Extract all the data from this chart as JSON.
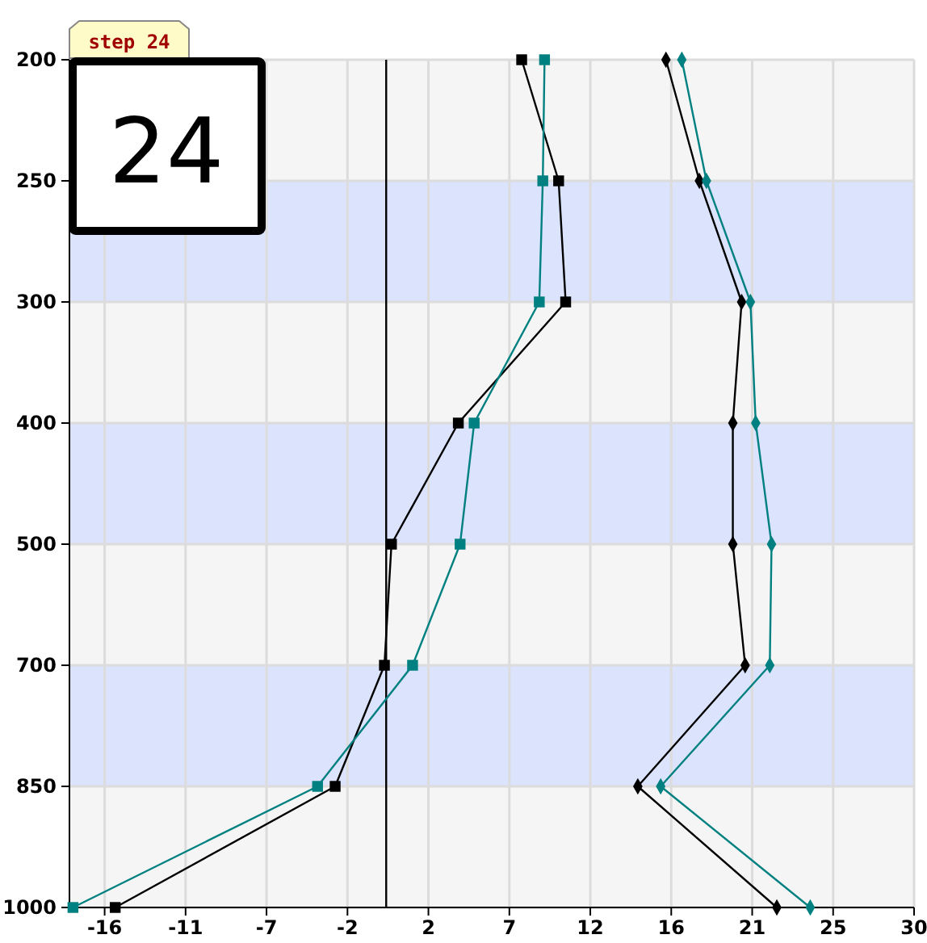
{
  "chart_data": {
    "type": "line",
    "title": "step 24",
    "annotations": [
      "24"
    ],
    "orientation": "horizontal",
    "categories": [
      "200",
      "250",
      "300",
      "400",
      "500",
      "700",
      "850",
      "1000"
    ],
    "xlim": [
      -18,
      30
    ],
    "xticks": [
      {
        "value": -16,
        "label": "-16"
      },
      {
        "value": -11.4,
        "label": "-11"
      },
      {
        "value": -6.8,
        "label": "-7"
      },
      {
        "value": -2.2,
        "label": "-2"
      },
      {
        "value": 2.4,
        "label": "2"
      },
      {
        "value": 7,
        "label": "7"
      },
      {
        "value": 11.6,
        "label": "12"
      },
      {
        "value": 16.2,
        "label": "16"
      },
      {
        "value": 20.8,
        "label": "21"
      },
      {
        "value": 25.4,
        "label": "25"
      },
      {
        "value": 30,
        "label": "30"
      }
    ],
    "grid": true,
    "ref_lines": [
      {
        "axis": "x",
        "value": 0,
        "color": "#000000"
      }
    ],
    "bands": [
      {
        "axis": "y",
        "from": "200",
        "to": "250",
        "color": "#f5f5f5"
      },
      {
        "axis": "y",
        "from": "250",
        "to": "300",
        "color": "#dbe3fd"
      },
      {
        "axis": "y",
        "from": "300",
        "to": "400",
        "color": "#f5f5f5"
      },
      {
        "axis": "y",
        "from": "400",
        "to": "500",
        "color": "#dbe3fd"
      },
      {
        "axis": "y",
        "from": "500",
        "to": "700",
        "color": "#f5f5f5"
      },
      {
        "axis": "y",
        "from": "700",
        "to": "850",
        "color": "#dbe3fd"
      },
      {
        "axis": "y",
        "from": "850",
        "to": "1000",
        "color": "#f5f5f5"
      }
    ],
    "series": [
      {
        "color": "#000000",
        "marker": "square",
        "values": [
          7.7,
          9.8,
          10.2,
          4.1,
          0.3,
          -0.1,
          -2.9,
          -15.4
        ]
      },
      {
        "color": "#008080",
        "marker": "square",
        "values": [
          9.0,
          8.9,
          8.7,
          5.0,
          4.2,
          1.5,
          -3.9,
          -17.8
        ]
      },
      {
        "color": "#000000",
        "marker": "diamond",
        "values": [
          15.9,
          17.8,
          20.2,
          19.7,
          19.7,
          20.4,
          14.3,
          22.2
        ]
      },
      {
        "color": "#008080",
        "marker": "diamond",
        "values": [
          16.8,
          18.2,
          20.7,
          21.0,
          21.9,
          21.8,
          15.6,
          24.1
        ]
      }
    ]
  }
}
